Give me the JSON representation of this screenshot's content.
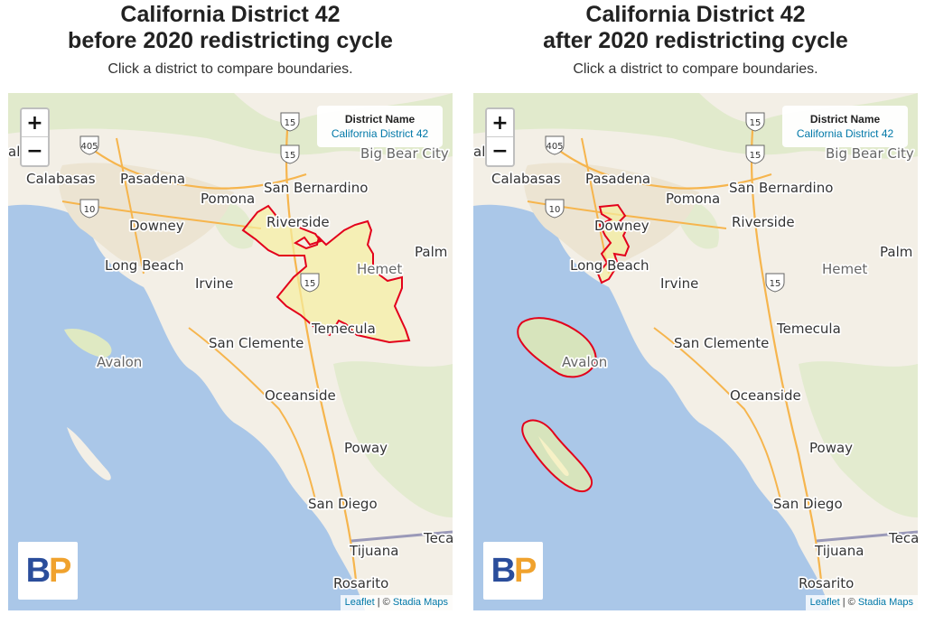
{
  "panels": [
    {
      "title_line1": "California District 42",
      "title_line2": "before 2020 redistricting cycle",
      "subtitle": "Click a district to compare boundaries.",
      "info_label": "District Name",
      "info_value": "California District 42"
    },
    {
      "title_line1": "California District 42",
      "title_line2": "after 2020 redistricting cycle",
      "subtitle": "Click a district to compare boundaries.",
      "info_label": "District Name",
      "info_value": "California District 42"
    }
  ],
  "map": {
    "zoom_in": "+",
    "zoom_out": "−",
    "attribution_leaflet": "Leaflet",
    "attribution_sep": " | © ",
    "attribution_tiles": "Stadia Maps",
    "logo_b": "B",
    "logo_p": "P",
    "places": {
      "calabasas": "Calabasas",
      "pasadena": "Pasadena",
      "pomona": "Pomona",
      "san_bernardino": "San Bernardino",
      "big_bear": "Big Bear City",
      "riverside": "Riverside",
      "downey": "Downey",
      "long_beach": "Long Beach",
      "irvine": "Irvine",
      "hemet": "Hemet",
      "palm": "Palm",
      "temecula": "Temecula",
      "san_clemente": "San Clemente",
      "avalon": "Avalon",
      "oceanside": "Oceanside",
      "poway": "Poway",
      "san_diego": "San Diego",
      "tijuana": "Tijuana",
      "teca": "Teca",
      "rosarito": "Rosarito",
      "valley": "alley"
    },
    "shields": {
      "i405": "405",
      "i15a": "15",
      "i15b": "15",
      "i10": "10",
      "i15c": "15"
    }
  },
  "colors": {
    "water": "#aac7e8",
    "land": "#f3efe6",
    "district_fill": "#f5f0a0",
    "district_stroke": "#e3001b",
    "info_link": "#0078a8"
  }
}
